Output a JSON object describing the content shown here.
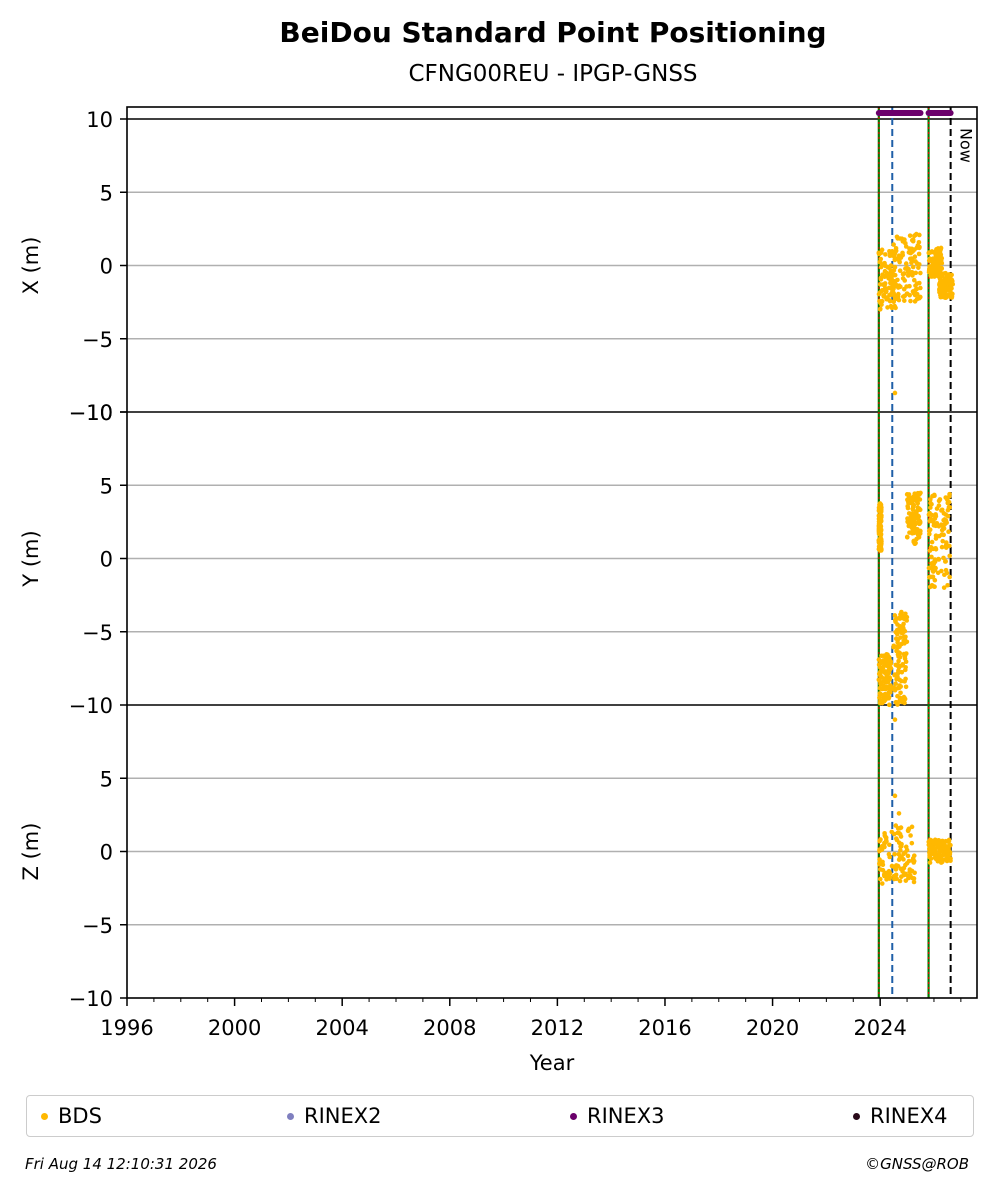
{
  "chart_data": {
    "type": "scatter",
    "title": "BeiDou Standard Point Positioning",
    "subtitle": "CFNG00REU - IPGP-GNSS",
    "xlabel": "Year",
    "xlim": [
      1996,
      2027.6
    ],
    "x_ticks": [
      "1996",
      "2000",
      "2004",
      "2008",
      "2012",
      "2016",
      "2020",
      "2024"
    ],
    "panels": [
      {
        "ylabel": "X (m)",
        "ylim": [
          -10,
          10
        ],
        "y_ticks": [
          "10",
          "5",
          "0",
          "−5",
          "−10"
        ]
      },
      {
        "ylabel": "Y (m)",
        "ylim": [
          -10,
          10
        ],
        "y_ticks": [
          "−10",
          "5",
          "0",
          "−5"
        ]
      },
      {
        "ylabel": "Z (m)",
        "ylim": [
          -10,
          10
        ],
        "y_ticks": [
          "−10",
          "5",
          "0",
          "−5",
          "−10"
        ]
      }
    ],
    "grid": true,
    "vertical_lines": [
      {
        "x": 2023.95,
        "style": "green-red-dotted"
      },
      {
        "x": 2024.45,
        "style": "blue-dashed"
      },
      {
        "x": 2025.8,
        "style": "green-red-dotted"
      },
      {
        "x": 2026.62,
        "style": "black-dashed",
        "label": "Now"
      }
    ],
    "rinex3_coverage": [
      [
        2023.95,
        2025.5
      ],
      [
        2025.8,
        2026.62
      ]
    ],
    "series": [
      {
        "name": "BDS",
        "color": "#FFB800",
        "clusters": [
          {
            "panel": 0,
            "x_range": [
              2023.95,
              2024.6
            ],
            "y_range": [
              -3,
              1.2
            ]
          },
          {
            "panel": 0,
            "x_range": [
              2024.5,
              2025.5
            ],
            "y_range": [
              -2.5,
              2.2
            ]
          },
          {
            "panel": 0,
            "x_range": [
              2025.8,
              2026.3
            ],
            "y_range": [
              -0.8,
              1.2
            ]
          },
          {
            "panel": 0,
            "x_range": [
              2026.2,
              2026.7
            ],
            "y_range": [
              -2.2,
              -0.5
            ]
          },
          {
            "panel": 1,
            "x_range": [
              2023.95,
              2024.05
            ],
            "y_range": [
              0.5,
              3.8
            ]
          },
          {
            "panel": 1,
            "x_range": [
              2025.0,
              2025.5
            ],
            "y_range": [
              1.0,
              4.5
            ]
          },
          {
            "panel": 1,
            "x_range": [
              2025.8,
              2026.6
            ],
            "y_range": [
              -2.0,
              4.5
            ]
          },
          {
            "panel": 1,
            "x_range": [
              2023.95,
              2024.4
            ],
            "y_range": [
              -10,
              -6.5
            ]
          },
          {
            "panel": 1,
            "x_range": [
              2024.5,
              2025.0
            ],
            "y_range": [
              -10,
              -3.5
            ]
          },
          {
            "panel": 2,
            "x_range": [
              2023.95,
              2025.3
            ],
            "y_range": [
              -2.2,
              1.8
            ]
          },
          {
            "panel": 2,
            "x_range": [
              2025.8,
              2026.62
            ],
            "y_range": [
              -0.8,
              0.8
            ]
          }
        ],
        "outliers": [
          {
            "panel": 0,
            "x": 2024.55,
            "y": -8.7
          },
          {
            "panel": 1,
            "x": 2024.55,
            "y": -11.0
          },
          {
            "panel": 2,
            "x": 2024.55,
            "y": 3.8
          },
          {
            "panel": 2,
            "x": 2024.7,
            "y": 2.6
          }
        ]
      }
    ],
    "legend": {
      "placement": "bottom",
      "entries": [
        {
          "label": "BDS",
          "color": "#FFB800"
        },
        {
          "label": "RINEX2",
          "color": "#7F7FBF"
        },
        {
          "label": "RINEX3",
          "color": "#6B006B"
        },
        {
          "label": "RINEX4",
          "color": "#2A0A1A"
        }
      ]
    }
  },
  "footer": {
    "timestamp": "Fri Aug 14 12:10:31 2026",
    "credit": "©GNSS@ROB"
  }
}
